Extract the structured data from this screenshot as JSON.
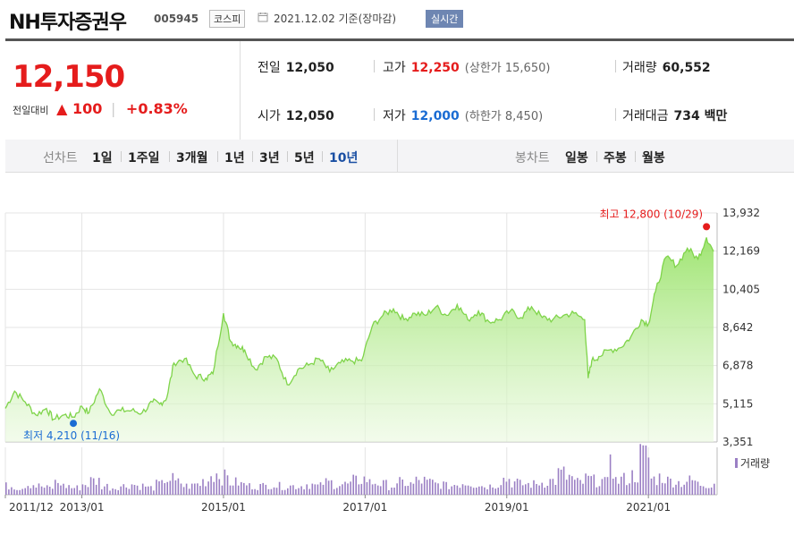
{
  "header": {
    "name": "NH투자증권우",
    "code": "005945",
    "market": "코스피",
    "date": "2021.12.02 기준(장마감)",
    "realtime": "실시간"
  },
  "quote": {
    "price": "12,150",
    "change_label": "전일대비",
    "change_arrow": "▲",
    "change": "100",
    "change_pct": "+0.83%",
    "prev_close": {
      "label": "전일",
      "value": "12,050"
    },
    "open": {
      "label": "시가",
      "value": "12,050"
    },
    "high": {
      "label": "고가",
      "value": "12,250",
      "limit_label": "(상한가 15,650)"
    },
    "low": {
      "label": "저가",
      "value": "12,000",
      "limit_label": "(하한가 8,450)"
    },
    "volume": {
      "label": "거래량",
      "value": "60,552"
    },
    "turnover": {
      "label": "거래대금",
      "value": "734 백만"
    }
  },
  "tabs": {
    "line_label": "선차트",
    "line_periods": [
      "1일",
      "1주일",
      "3개월",
      "1년",
      "3년",
      "5년",
      "10년"
    ],
    "active": "10년",
    "candle_label": "봉차트",
    "candle_periods": [
      "일봉",
      "주봉",
      "월봉"
    ]
  },
  "colors": {
    "up": "#e51c1c",
    "down": "#1a6cd3",
    "line": "#7fd44a",
    "volume": "#9b7fc4"
  },
  "chart_data": {
    "type": "area",
    "x_range": [
      "2011-12",
      "2021-12"
    ],
    "y_ticks": [
      3351,
      5115,
      6878,
      8642,
      10405,
      12169,
      13932
    ],
    "y_range": [
      3351,
      13932
    ],
    "x_ticks": [
      "2011/12",
      "2013/01",
      "2015/01",
      "2017/01",
      "2019/01",
      "2021/01"
    ],
    "grid": true,
    "series": [
      {
        "values_x": [
          2011.92,
          2012.05,
          2012.2,
          2012.35,
          2012.5,
          2012.6,
          2012.75,
          2012.88,
          2013.0,
          2013.1,
          2013.25,
          2013.4,
          2013.55,
          2013.7,
          2013.85,
          2014.0,
          2014.1,
          2014.2,
          2014.3,
          2014.45,
          2014.6,
          2014.75,
          2014.85,
          2015.0,
          2015.1,
          2015.2,
          2015.3,
          2015.45,
          2015.6,
          2015.75,
          2015.9,
          2016.05,
          2016.2,
          2016.35,
          2016.5,
          2016.65,
          2016.8,
          2016.95,
          2017.1,
          2017.25,
          2017.4,
          2017.55,
          2017.7,
          2017.85,
          2018.0,
          2018.15,
          2018.3,
          2018.45,
          2018.6,
          2018.75,
          2018.9,
          2019.05,
          2019.2,
          2019.35,
          2019.5,
          2019.65,
          2019.8,
          2019.95,
          2020.1,
          2020.15,
          2020.2,
          2020.3,
          2020.45,
          2020.6,
          2020.75,
          2020.9,
          2021.0,
          2021.1,
          2021.25,
          2021.4,
          2021.55,
          2021.7,
          2021.82,
          2021.92
        ],
        "values": [
          4900,
          5700,
          5200,
          4600,
          4900,
          4400,
          4600,
          4500,
          5000,
          4700,
          5800,
          4700,
          4800,
          4800,
          4700,
          5200,
          5100,
          5400,
          7000,
          7200,
          6400,
          6300,
          6500,
          9300,
          8000,
          7800,
          7600,
          6700,
          7300,
          7200,
          6000,
          6700,
          6900,
          7200,
          6600,
          7000,
          7100,
          7100,
          8700,
          9200,
          9500,
          9000,
          9300,
          9200,
          9600,
          9200,
          9700,
          9000,
          9400,
          8900,
          9000,
          9400,
          9100,
          9600,
          9100,
          9000,
          9200,
          9300,
          9000,
          6300,
          7100,
          7300,
          7600,
          7700,
          8200,
          9000,
          8800,
          10300,
          11900,
          11500,
          12300,
          11800,
          12800,
          12150
        ]
      }
    ],
    "volume": [
      5,
      4,
      6,
      5,
      4,
      7,
      5,
      4,
      6,
      8,
      5,
      4,
      5,
      6,
      5,
      4,
      6,
      9,
      7,
      5,
      6,
      8,
      12,
      10,
      7,
      6,
      5,
      5,
      6,
      5,
      5,
      5,
      6,
      5,
      7,
      6,
      6,
      8,
      9,
      7,
      6,
      5,
      7,
      6,
      8,
      7,
      6,
      5,
      6,
      7,
      6,
      5,
      6,
      9,
      7,
      6,
      6,
      7,
      8,
      12,
      10,
      7,
      9,
      8,
      7,
      8,
      9,
      11,
      22,
      9,
      10,
      8,
      7,
      8,
      6,
      6,
      7
    ],
    "annotations": {
      "max": {
        "text": "최고 12,800 (10/29)"
      },
      "min": {
        "text": "최저 4,210 (11/16)"
      }
    },
    "volume_label": "거래량"
  }
}
